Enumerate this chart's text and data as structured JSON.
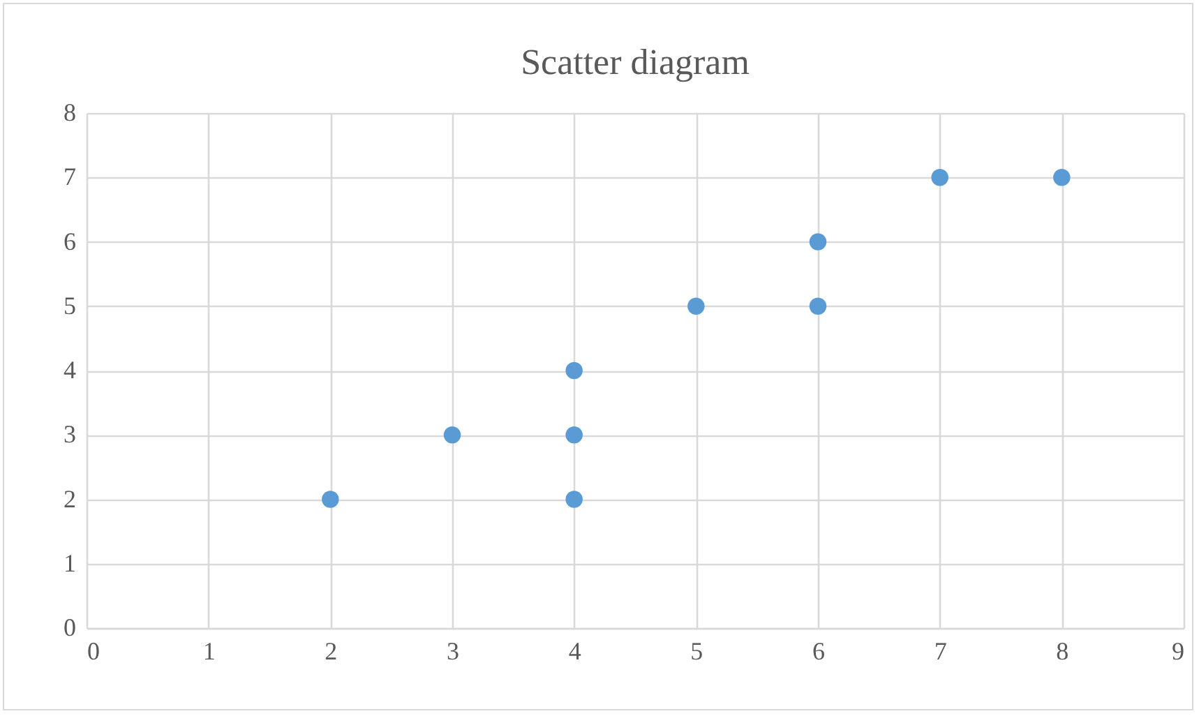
{
  "chart_data": {
    "type": "scatter",
    "title": "Scatter diagram",
    "x": [
      2,
      3,
      4,
      4,
      4,
      5,
      6,
      6,
      7,
      8
    ],
    "series": [
      {
        "color": "#5b9bd5",
        "values": [
          2,
          3,
          4,
          3,
          2,
          5,
          6,
          5,
          7,
          7
        ]
      }
    ],
    "xlim": [
      0,
      9
    ],
    "xticks": [
      0,
      1,
      2,
      3,
      4,
      5,
      6,
      7,
      8,
      9
    ],
    "ylim": [
      0,
      8
    ],
    "yticks": [
      0,
      1,
      2,
      3,
      4,
      5,
      6,
      7,
      8
    ],
    "grid": true,
    "marker": "circle"
  }
}
